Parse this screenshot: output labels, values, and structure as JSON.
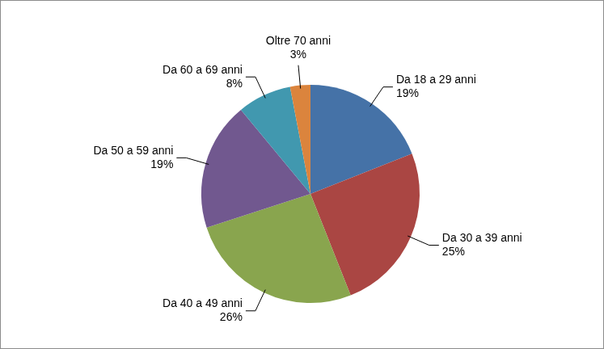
{
  "chart_data": {
    "type": "pie",
    "categories": [
      "Da 18 a 29 anni",
      "Da 30 a 39 anni",
      "Da 40 a 49 anni",
      "Da 50 a 59 anni",
      "Da 60 a 69 anni",
      "Oltre 70 anni"
    ],
    "values": [
      19,
      25,
      26,
      19,
      8,
      3
    ],
    "value_labels": [
      "19%",
      "25%",
      "26%",
      "19%",
      "8%",
      "3%"
    ],
    "colors": [
      "#4572a7",
      "#aa4643",
      "#89a54e",
      "#71588f",
      "#4198af",
      "#db843d"
    ],
    "data_labels": true
  }
}
